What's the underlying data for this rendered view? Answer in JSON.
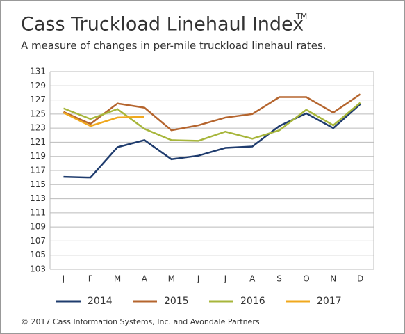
{
  "chart_data": {
    "type": "line",
    "title": "Cass Truckload Linehaul Index",
    "trademark": "TM",
    "subtitle": "A measure of changes in per-mile truckload linehaul rates.",
    "footer": "© 2017 Cass Information Systems, Inc. and Avondale Partners",
    "categories": [
      "J",
      "F",
      "M",
      "A",
      "M",
      "J",
      "J",
      "A",
      "S",
      "O",
      "N",
      "D"
    ],
    "series": [
      {
        "name": "2014",
        "color": "#1f3c6e",
        "values": [
          116.1,
          116.0,
          120.3,
          121.3,
          118.6,
          119.1,
          120.2,
          120.4,
          123.3,
          125.1,
          123.0,
          126.4
        ]
      },
      {
        "name": "2015",
        "color": "#b5652e",
        "values": [
          125.3,
          123.6,
          126.5,
          125.9,
          122.7,
          123.4,
          124.5,
          125.0,
          127.4,
          127.4,
          125.2,
          127.8
        ]
      },
      {
        "name": "2016",
        "color": "#a7b63b",
        "values": [
          125.8,
          124.3,
          125.7,
          122.9,
          121.3,
          121.2,
          122.5,
          121.5,
          122.7,
          125.6,
          123.4,
          126.6
        ]
      },
      {
        "name": "2017",
        "color": "#f0a81e",
        "values": [
          125.2,
          123.3,
          124.5,
          124.6,
          null,
          null,
          null,
          null,
          null,
          null,
          null,
          null
        ]
      }
    ],
    "ylim": [
      103,
      131
    ],
    "yticks": [
      103,
      105,
      107,
      109,
      111,
      113,
      115,
      117,
      119,
      121,
      123,
      125,
      127,
      129,
      131
    ],
    "grid": true,
    "legend": "bottom"
  }
}
